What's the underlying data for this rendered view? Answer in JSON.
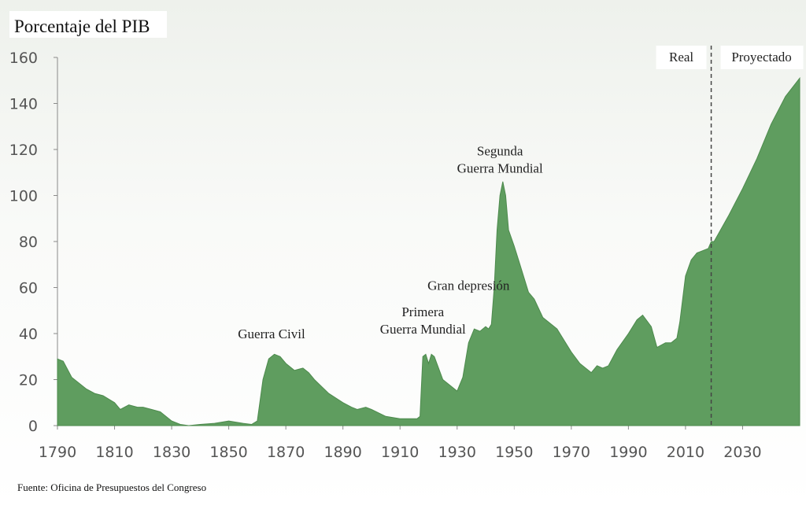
{
  "chart_data": {
    "type": "area",
    "ylabel": "Porcentaje del PIB",
    "source": "Fuente: Oficina de Presupuestos del Congreso",
    "ylim": [
      0,
      160
    ],
    "yticks": [
      0,
      20,
      40,
      60,
      80,
      100,
      120,
      140,
      160
    ],
    "xlim": [
      1790,
      2050
    ],
    "xticks": [
      1790,
      1810,
      1830,
      1850,
      1870,
      1890,
      1910,
      1930,
      1950,
      1970,
      1990,
      2010,
      2030
    ],
    "grid": false,
    "color": "#5f9d5f",
    "divider": {
      "x": 2019,
      "left_label": "Real",
      "right_label": "Proyectado"
    },
    "annotations": [
      {
        "lines": [
          "Guerra Civil"
        ],
        "x": 1865,
        "y": 38
      },
      {
        "lines": [
          "Primera",
          "Guerra Mundial"
        ],
        "x": 1918,
        "y": 40
      },
      {
        "lines": [
          "Gran depresión"
        ],
        "x": 1934,
        "y": 59
      },
      {
        "lines": [
          "Segunda",
          "Guerra Mundial"
        ],
        "x": 1945,
        "y": 110
      }
    ],
    "series": [
      {
        "x": [
          1790,
          1792,
          1795,
          1800,
          1803,
          1806,
          1810,
          1812,
          1815,
          1818,
          1820,
          1823,
          1826,
          1830,
          1833,
          1836,
          1840,
          1845,
          1850,
          1855,
          1858,
          1860,
          1862,
          1864,
          1866,
          1868,
          1870,
          1873,
          1876,
          1878,
          1880,
          1885,
          1890,
          1893,
          1895,
          1898,
          1900,
          1905,
          1910,
          1913,
          1915,
          1916,
          1917,
          1918,
          1919,
          1920,
          1921,
          1922,
          1925,
          1928,
          1930,
          1932,
          1934,
          1936,
          1938,
          1940,
          1941,
          1942,
          1943,
          1944,
          1945,
          1946,
          1947,
          1948,
          1950,
          1952,
          1955,
          1957,
          1960,
          1965,
          1970,
          1973,
          1975,
          1977,
          1979,
          1981,
          1983,
          1986,
          1990,
          1993,
          1995,
          1998,
          2000,
          2003,
          2005,
          2007,
          2008,
          2009,
          2010,
          2012,
          2014,
          2016,
          2018,
          2019,
          2020,
          2025,
          2030,
          2035,
          2040,
          2045,
          2050
        ],
        "y": [
          29,
          28,
          21,
          16,
          14,
          13,
          10,
          7,
          9,
          8,
          8,
          7,
          6,
          2,
          0.5,
          0,
          0.5,
          1,
          2,
          1,
          0.5,
          2,
          20,
          29,
          31,
          30,
          27,
          24,
          25,
          23,
          20,
          14,
          10,
          8,
          7,
          8,
          7,
          4,
          3,
          3,
          3,
          3,
          4,
          30,
          31,
          27,
          31,
          30,
          20,
          17,
          15,
          21,
          36,
          42,
          41,
          43,
          42,
          44,
          60,
          85,
          100,
          106,
          100,
          85,
          78,
          70,
          58,
          55,
          47,
          42,
          32,
          27,
          25,
          23,
          26,
          25,
          26,
          33,
          40,
          46,
          48,
          43,
          34,
          36,
          36,
          38,
          45,
          55,
          65,
          72,
          75,
          76,
          77,
          80,
          80,
          91,
          103,
          116,
          131,
          143,
          151
        ]
      }
    ]
  }
}
